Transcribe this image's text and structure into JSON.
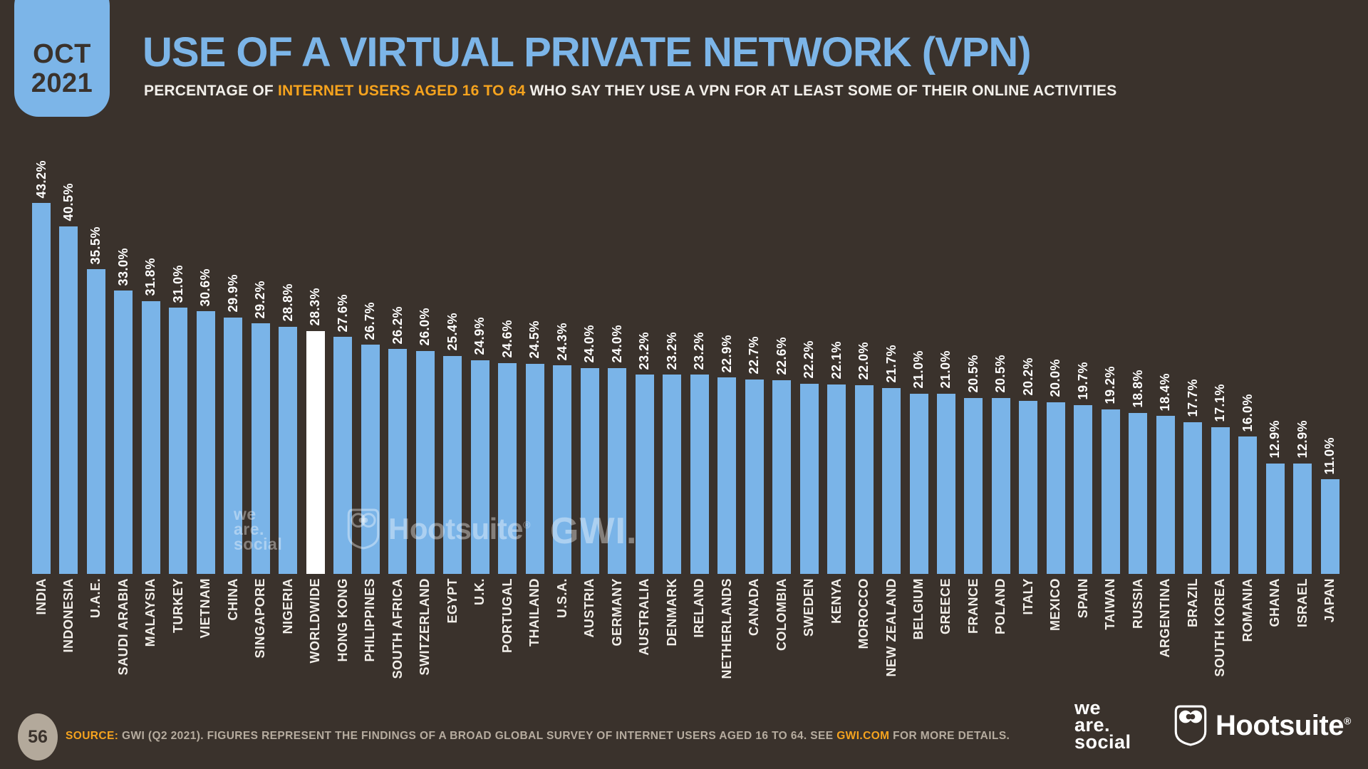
{
  "badge": {
    "month": "OCT",
    "year": "2021"
  },
  "header": {
    "title": "USE OF A VIRTUAL PRIVATE NETWORK (VPN)",
    "subtitle_prefix": "PERCENTAGE OF ",
    "subtitle_highlight": "INTERNET USERS AGED 16 TO 64",
    "subtitle_suffix": " WHO SAY THEY USE A VPN FOR AT LEAST SOME OF THEIR ONLINE ACTIVITIES"
  },
  "chart_data": {
    "type": "bar",
    "title": "Use of a Virtual Private Network (VPN)",
    "categories": [
      "INDIA",
      "INDONESIA",
      "U.A.E.",
      "SAUDI ARABIA",
      "MALAYSIA",
      "TURKEY",
      "VIETNAM",
      "CHINA",
      "SINGAPORE",
      "NIGERIA",
      "WORLDWIDE",
      "HONG KONG",
      "PHILIPPINES",
      "SOUTH AFRICA",
      "SWITZERLAND",
      "EGYPT",
      "U.K.",
      "PORTUGAL",
      "THAILAND",
      "U.S.A.",
      "AUSTRIA",
      "GERMANY",
      "AUSTRALIA",
      "DENMARK",
      "IRELAND",
      "NETHERLANDS",
      "CANADA",
      "COLOMBIA",
      "SWEDEN",
      "KENYA",
      "MOROCCO",
      "NEW ZEALAND",
      "BELGIUM",
      "GREECE",
      "FRANCE",
      "POLAND",
      "ITALY",
      "MEXICO",
      "SPAIN",
      "TAIWAN",
      "RUSSIA",
      "ARGENTINA",
      "BRAZIL",
      "SOUTH KOREA",
      "ROMANIA",
      "GHANA",
      "ISRAEL",
      "JAPAN"
    ],
    "values": [
      43.2,
      40.5,
      35.5,
      33.0,
      31.8,
      31.0,
      30.6,
      29.9,
      29.2,
      28.8,
      28.3,
      27.6,
      26.7,
      26.2,
      26.0,
      25.4,
      24.9,
      24.6,
      24.5,
      24.3,
      24.0,
      24.0,
      23.2,
      23.2,
      23.2,
      22.9,
      22.7,
      22.6,
      22.2,
      22.1,
      22.0,
      21.7,
      21.0,
      21.0,
      20.5,
      20.5,
      20.2,
      20.0,
      19.7,
      19.2,
      18.8,
      18.4,
      17.7,
      17.1,
      16.0,
      12.9,
      12.9,
      11.0
    ],
    "value_suffix": "%",
    "highlight_category": "WORLDWIDE",
    "bar_color": "#7AB4E8",
    "highlight_color": "#FFFFFF",
    "label_color": "#FFFFFF",
    "background_color": "#3A322C",
    "xlabel": "",
    "ylabel": "",
    "ylim": [
      0,
      45
    ],
    "grid": false,
    "legend_position": "none"
  },
  "watermarks": {
    "was_lines": [
      "we",
      "are.",
      "social"
    ],
    "hootsuite": "Hootsuite",
    "reg": "®",
    "gwi": "GWI."
  },
  "footer": {
    "page_number": "56",
    "source_label": "SOURCE:",
    "source_text": " GWI (Q2 2021). FIGURES REPRESENT THE FINDINGS OF A BROAD GLOBAL SURVEY OF INTERNET USERS AGED 16 TO 64. SEE ",
    "source_link": "GWI.COM",
    "source_tail": " FOR MORE DETAILS."
  },
  "logos": {
    "was_lines": [
      "we",
      "are.",
      "social"
    ],
    "hootsuite": "Hootsuite",
    "reg": "®"
  }
}
